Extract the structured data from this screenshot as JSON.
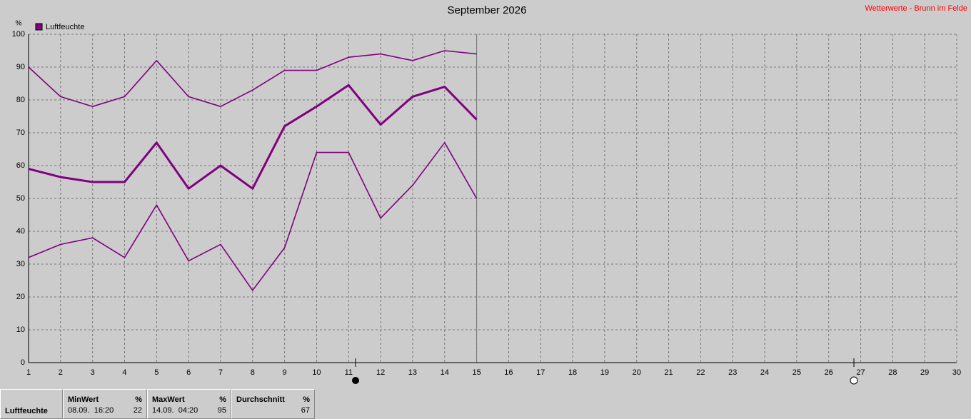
{
  "chart_data": {
    "type": "line",
    "title": "September 2026",
    "source": "Wetterwerte - Brunn im Felde",
    "y_label": "%",
    "legend": {
      "label": "Luftfeuchte",
      "color": "#800080"
    },
    "x": [
      1,
      2,
      3,
      4,
      5,
      6,
      7,
      8,
      9,
      10,
      11,
      12,
      13,
      14,
      15
    ],
    "series": [
      {
        "color": "#800080",
        "values": [
          90,
          81,
          78,
          81,
          92,
          81,
          78,
          83,
          89,
          89,
          93,
          94,
          92,
          95,
          94
        ]
      },
      {
        "color": "#800080",
        "values": [
          59,
          56.5,
          55,
          55,
          67,
          53,
          60,
          53,
          72,
          78,
          84.5,
          72.5,
          81,
          84,
          74
        ]
      },
      {
        "color": "#800080",
        "values": [
          32,
          36,
          38,
          32,
          48,
          31,
          36,
          22,
          35,
          64,
          64,
          44,
          54,
          67,
          50
        ]
      }
    ],
    "xlim": [
      1,
      30
    ],
    "xticks": [
      1,
      2,
      3,
      4,
      5,
      6,
      7,
      8,
      9,
      10,
      11,
      12,
      13,
      14,
      15,
      16,
      17,
      18,
      19,
      20,
      21,
      22,
      23,
      24,
      25,
      26,
      27,
      28,
      29,
      30
    ],
    "ylim": [
      0,
      100
    ],
    "yticks": [
      0,
      10,
      20,
      30,
      40,
      50,
      60,
      70,
      80,
      90,
      100
    ],
    "grid": true
  },
  "stats": {
    "label": "Luftfeuchte",
    "columns": [
      {
        "title": "MinWert",
        "unit": "%",
        "date": "08.09.  16:20",
        "value": 22
      },
      {
        "title": "MaxWert",
        "unit": "%",
        "date": "14.09.  04:20",
        "value": 95
      },
      {
        "title": "Durchschnitt",
        "unit": "%",
        "value": 67
      }
    ]
  }
}
